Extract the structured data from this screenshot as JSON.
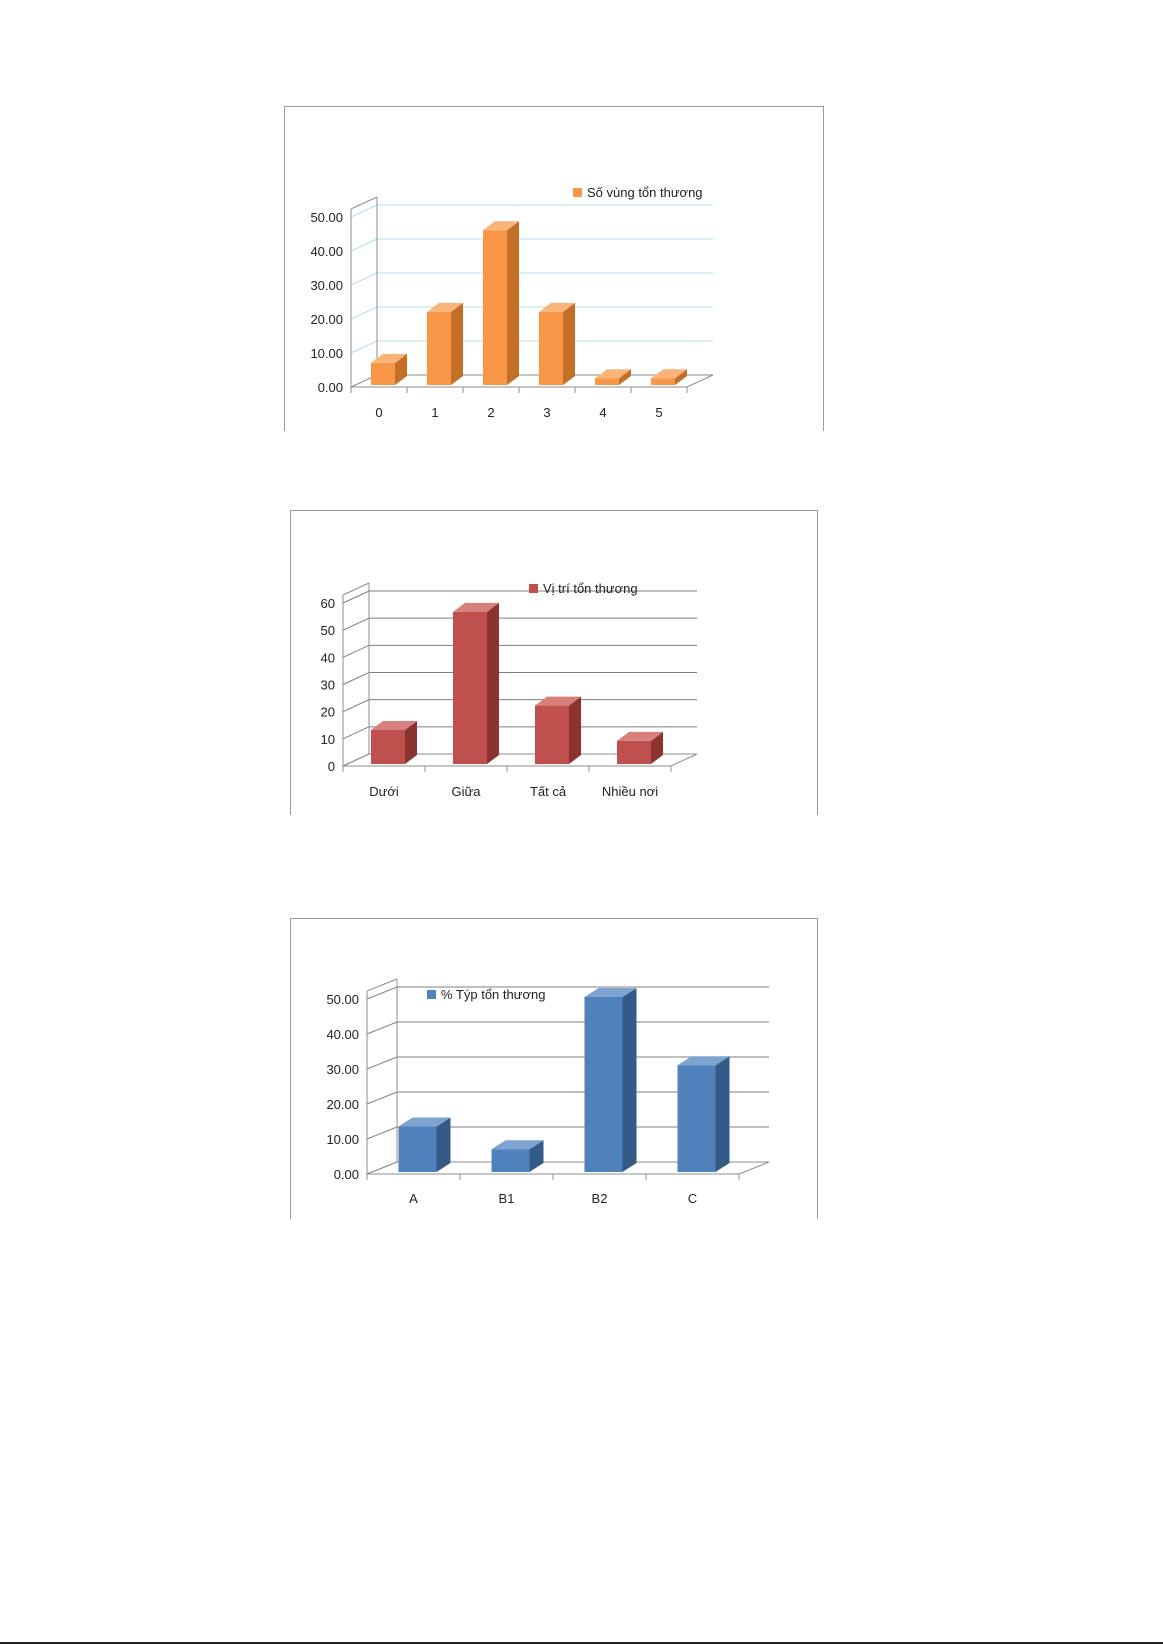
{
  "chart_data": [
    {
      "type": "bar",
      "categories": [
        "0",
        "1",
        "2",
        "3",
        "4",
        "5"
      ],
      "series": [
        {
          "name": "Số vùng tổn thương",
          "values": [
            6.5,
            21.5,
            45.5,
            21.5,
            2.0,
            2.0
          ]
        }
      ],
      "y_ticks": [
        "0.00",
        "10.00",
        "20.00",
        "30.00",
        "40.00",
        "50.00"
      ],
      "ylim": [
        0,
        50
      ],
      "grid": true,
      "legend": "top-right",
      "colors": {
        "face": "#f79646",
        "side": "#c46f25",
        "top": "#f9b47a",
        "grid": "#b7dee8"
      }
    },
    {
      "type": "bar",
      "categories": [
        "Dưới",
        "Giữa",
        "Tất cả",
        "Nhiều nơi"
      ],
      "series": [
        {
          "name": "Vị trí tổn thương",
          "values": [
            12.5,
            56.0,
            21.5,
            8.5
          ]
        }
      ],
      "y_ticks": [
        "0",
        "10",
        "20",
        "30",
        "40",
        "50",
        "60"
      ],
      "ylim": [
        0,
        60
      ],
      "grid": true,
      "legend": "top-right",
      "colors": {
        "face": "#c0504d",
        "side": "#8b3331",
        "top": "#d8807d",
        "grid": "#7f7f7f"
      }
    },
    {
      "type": "bar",
      "categories": [
        "A",
        "B1",
        "B2",
        "C"
      ],
      "series": [
        {
          "name": "% Týp tổn thương",
          "values": [
            13.0,
            6.5,
            50.0,
            30.5
          ]
        }
      ],
      "y_ticks": [
        "0.00",
        "10.00",
        "20.00",
        "30.00",
        "40.00",
        "50.00"
      ],
      "ylim": [
        0,
        50
      ],
      "grid": true,
      "legend": "top-left",
      "colors": {
        "face": "#4f81bd",
        "side": "#345b87",
        "top": "#7fa3d1",
        "grid": "#7f7f7f"
      }
    }
  ]
}
